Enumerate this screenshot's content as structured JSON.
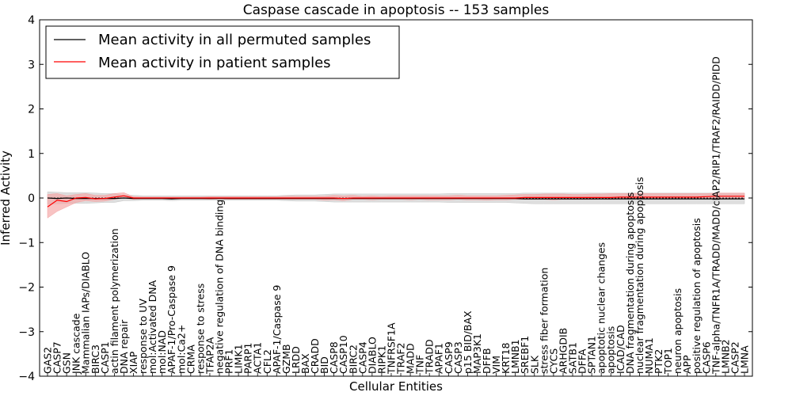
{
  "chart_data": {
    "type": "line",
    "title": "Caspase cascade in apoptosis -- 153 samples",
    "xlabel": "Cellular Entities",
    "ylabel": "Inferred Activity",
    "ylim": [
      -4,
      4
    ],
    "yticks": [
      -4,
      -3,
      -2,
      -1,
      0,
      1,
      2,
      3,
      4
    ],
    "grid": false,
    "legend_position": "top-left",
    "categories": [
      "GAS2",
      "CASP7",
      "GSN",
      "JNK cascade",
      "Mammalian IAPs/DIABLO",
      "BIRC3",
      "CASP1",
      "actin filament polymerization",
      "DNA repair",
      "XIAP",
      "response to UV",
      "mol:Activated DNA",
      "mol:NAD",
      "APAF-1/Pro-Caspase 9",
      "mol:Ca2+",
      "CRMA",
      "response to stress",
      "TFAP2A",
      "negative regulation of DNA binding",
      "PRF1",
      "LIMK1",
      "PARP1",
      "ACTA1",
      "CFL2",
      "APAF-1/Caspase 9",
      "GZMB",
      "LRDD",
      "BAX",
      "CRADD",
      "BID",
      "CASP8",
      "CASP10",
      "BIRC2",
      "CASP4",
      "DIABLO",
      "RIPK1",
      "TNFRSF1A",
      "TRAF2",
      "MADD",
      "TNF",
      "TRADD",
      "APAF1",
      "CASP9",
      "CASP3",
      "p15 BID/BAX",
      "MAP3K1",
      "DFFB",
      "VIM",
      "KRT18",
      "LMNB1",
      "SREBF1",
      "SLK",
      "stress fiber formation",
      "CYCS",
      "ARHGDIB",
      "SATB1",
      "DFFA",
      "SPTAN1",
      "apoptotic nuclear changes",
      "apoptosis",
      "ICAD/CAD",
      "DNA fragmentation during apoptosis",
      "nuclear fragmentation during apoptosis",
      "NUMA1",
      "PTK2",
      "TOP1",
      "neuron apoptosis",
      "APP",
      "positive regulation of apoptosis",
      "CASP6",
      "TNF-alpha/TNFR1A/TRADD/MADD/cIAP2/RIP1/TRAF2/RAIDD/PIDD",
      "LMNB2",
      "CASP2",
      "LMNA"
    ],
    "series": [
      {
        "name": "Mean activity in all permuted samples",
        "color": "#000000",
        "band_color": "#c8c8c8",
        "values": [
          0.0,
          -0.01,
          0.0,
          -0.01,
          -0.01,
          -0.01,
          -0.01,
          -0.01,
          0.0,
          -0.01,
          -0.01,
          -0.01,
          -0.01,
          -0.02,
          -0.01,
          -0.01,
          -0.01,
          -0.01,
          -0.01,
          -0.01,
          -0.01,
          -0.01,
          -0.01,
          -0.01,
          -0.01,
          -0.01,
          -0.01,
          -0.01,
          -0.01,
          -0.01,
          -0.01,
          -0.01,
          -0.01,
          -0.01,
          -0.01,
          -0.01,
          -0.01,
          -0.01,
          -0.01,
          -0.01,
          -0.01,
          -0.01,
          -0.01,
          -0.01,
          -0.01,
          -0.01,
          -0.01,
          -0.01,
          -0.01,
          -0.01,
          -0.02,
          -0.02,
          -0.02,
          -0.02,
          -0.02,
          -0.02,
          -0.02,
          -0.02,
          -0.02,
          -0.02,
          -0.02,
          -0.02,
          -0.02,
          -0.02,
          -0.02,
          -0.02,
          -0.02,
          -0.02,
          -0.02,
          -0.02,
          -0.02,
          -0.02,
          -0.02,
          -0.02
        ],
        "lower": [
          -0.14,
          -0.13,
          -0.12,
          -0.12,
          -0.12,
          -0.11,
          -0.1,
          -0.1,
          -0.06,
          -0.06,
          -0.05,
          -0.05,
          -0.05,
          -0.06,
          -0.05,
          -0.05,
          -0.05,
          -0.05,
          -0.05,
          -0.05,
          -0.05,
          -0.05,
          -0.05,
          -0.05,
          -0.05,
          -0.06,
          -0.07,
          -0.07,
          -0.07,
          -0.08,
          -0.09,
          -0.09,
          -0.09,
          -0.09,
          -0.09,
          -0.09,
          -0.09,
          -0.09,
          -0.09,
          -0.09,
          -0.09,
          -0.09,
          -0.1,
          -0.1,
          -0.1,
          -0.1,
          -0.1,
          -0.1,
          -0.1,
          -0.11,
          -0.12,
          -0.13,
          -0.13,
          -0.13,
          -0.13,
          -0.13,
          -0.13,
          -0.13,
          -0.13,
          -0.13,
          -0.13,
          -0.13,
          -0.13,
          -0.13,
          -0.13,
          -0.13,
          -0.13,
          -0.13,
          -0.13,
          -0.13,
          -0.13,
          -0.13,
          -0.13,
          -0.13
        ],
        "upper": [
          0.14,
          0.13,
          0.12,
          0.12,
          0.12,
          0.11,
          0.1,
          0.1,
          0.06,
          0.06,
          0.05,
          0.05,
          0.05,
          0.05,
          0.05,
          0.05,
          0.05,
          0.05,
          0.05,
          0.05,
          0.05,
          0.05,
          0.05,
          0.05,
          0.05,
          0.06,
          0.07,
          0.07,
          0.07,
          0.08,
          0.09,
          0.09,
          0.09,
          0.09,
          0.09,
          0.09,
          0.09,
          0.09,
          0.09,
          0.09,
          0.09,
          0.09,
          0.1,
          0.1,
          0.1,
          0.1,
          0.1,
          0.1,
          0.1,
          0.1,
          0.11,
          0.11,
          0.11,
          0.11,
          0.11,
          0.11,
          0.11,
          0.11,
          0.11,
          0.11,
          0.11,
          0.11,
          0.11,
          0.11,
          0.11,
          0.11,
          0.11,
          0.11,
          0.11,
          0.11,
          0.11,
          0.11,
          0.11,
          0.11
        ]
      },
      {
        "name": "Mean activity in patient samples",
        "color": "#ff0000",
        "band_color": "#f4a3a3",
        "values": [
          -0.2,
          -0.05,
          -0.08,
          0.0,
          0.01,
          -0.02,
          -0.01,
          0.02,
          0.05,
          0.0,
          0.0,
          0.0,
          0.0,
          0.0,
          0.0,
          0.0,
          0.0,
          0.0,
          0.0,
          0.0,
          0.0,
          0.0,
          0.0,
          0.0,
          0.0,
          0.0,
          0.0,
          0.0,
          0.0,
          0.0,
          0.0,
          -0.01,
          0.0,
          0.0,
          0.0,
          0.0,
          0.0,
          0.0,
          0.0,
          0.0,
          0.0,
          0.0,
          0.0,
          0.0,
          0.0,
          0.0,
          0.0,
          0.0,
          0.0,
          0.0,
          0.01,
          0.01,
          0.01,
          0.01,
          0.01,
          0.01,
          0.01,
          0.01,
          0.01,
          0.01,
          0.02,
          0.02,
          0.02,
          0.02,
          0.02,
          0.02,
          0.02,
          0.02,
          0.02,
          0.03,
          0.04,
          0.04,
          0.04,
          0.04
        ],
        "lower": [
          -0.45,
          -0.3,
          -0.2,
          -0.1,
          -0.06,
          -0.08,
          -0.07,
          -0.03,
          0.0,
          -0.03,
          -0.02,
          -0.02,
          -0.02,
          -0.02,
          -0.02,
          -0.02,
          -0.02,
          -0.03,
          -0.02,
          -0.03,
          -0.03,
          -0.03,
          -0.03,
          -0.03,
          -0.03,
          -0.03,
          -0.03,
          -0.03,
          -0.03,
          -0.05,
          -0.04,
          -0.06,
          -0.03,
          -0.03,
          -0.04,
          -0.03,
          -0.03,
          -0.03,
          -0.04,
          -0.03,
          -0.04,
          -0.04,
          -0.04,
          -0.03,
          -0.04,
          -0.04,
          -0.05,
          -0.04,
          -0.04,
          -0.03,
          -0.03,
          -0.03,
          -0.03,
          -0.04,
          -0.03,
          -0.03,
          -0.03,
          -0.03,
          -0.02,
          -0.03,
          -0.02,
          -0.02,
          -0.02,
          -0.02,
          -0.02,
          -0.02,
          -0.02,
          -0.02,
          -0.02,
          -0.02,
          -0.01,
          -0.01,
          -0.01,
          -0.01
        ],
        "upper": [
          0.08,
          0.1,
          0.05,
          0.08,
          0.1,
          0.06,
          0.06,
          0.1,
          0.12,
          0.03,
          0.02,
          0.02,
          0.02,
          0.02,
          0.02,
          0.02,
          0.02,
          0.03,
          0.03,
          0.03,
          0.03,
          0.03,
          0.03,
          0.03,
          0.03,
          0.04,
          0.04,
          0.04,
          0.04,
          0.04,
          0.06,
          0.05,
          0.06,
          0.04,
          0.05,
          0.04,
          0.05,
          0.05,
          0.05,
          0.05,
          0.05,
          0.05,
          0.05,
          0.06,
          0.05,
          0.05,
          0.05,
          0.05,
          0.06,
          0.07,
          0.08,
          0.08,
          0.09,
          0.09,
          0.09,
          0.08,
          0.08,
          0.09,
          0.09,
          0.1,
          0.1,
          0.1,
          0.11,
          0.1,
          0.1,
          0.1,
          0.1,
          0.1,
          0.1,
          0.1,
          0.11,
          0.11,
          0.11,
          0.11
        ]
      }
    ]
  }
}
